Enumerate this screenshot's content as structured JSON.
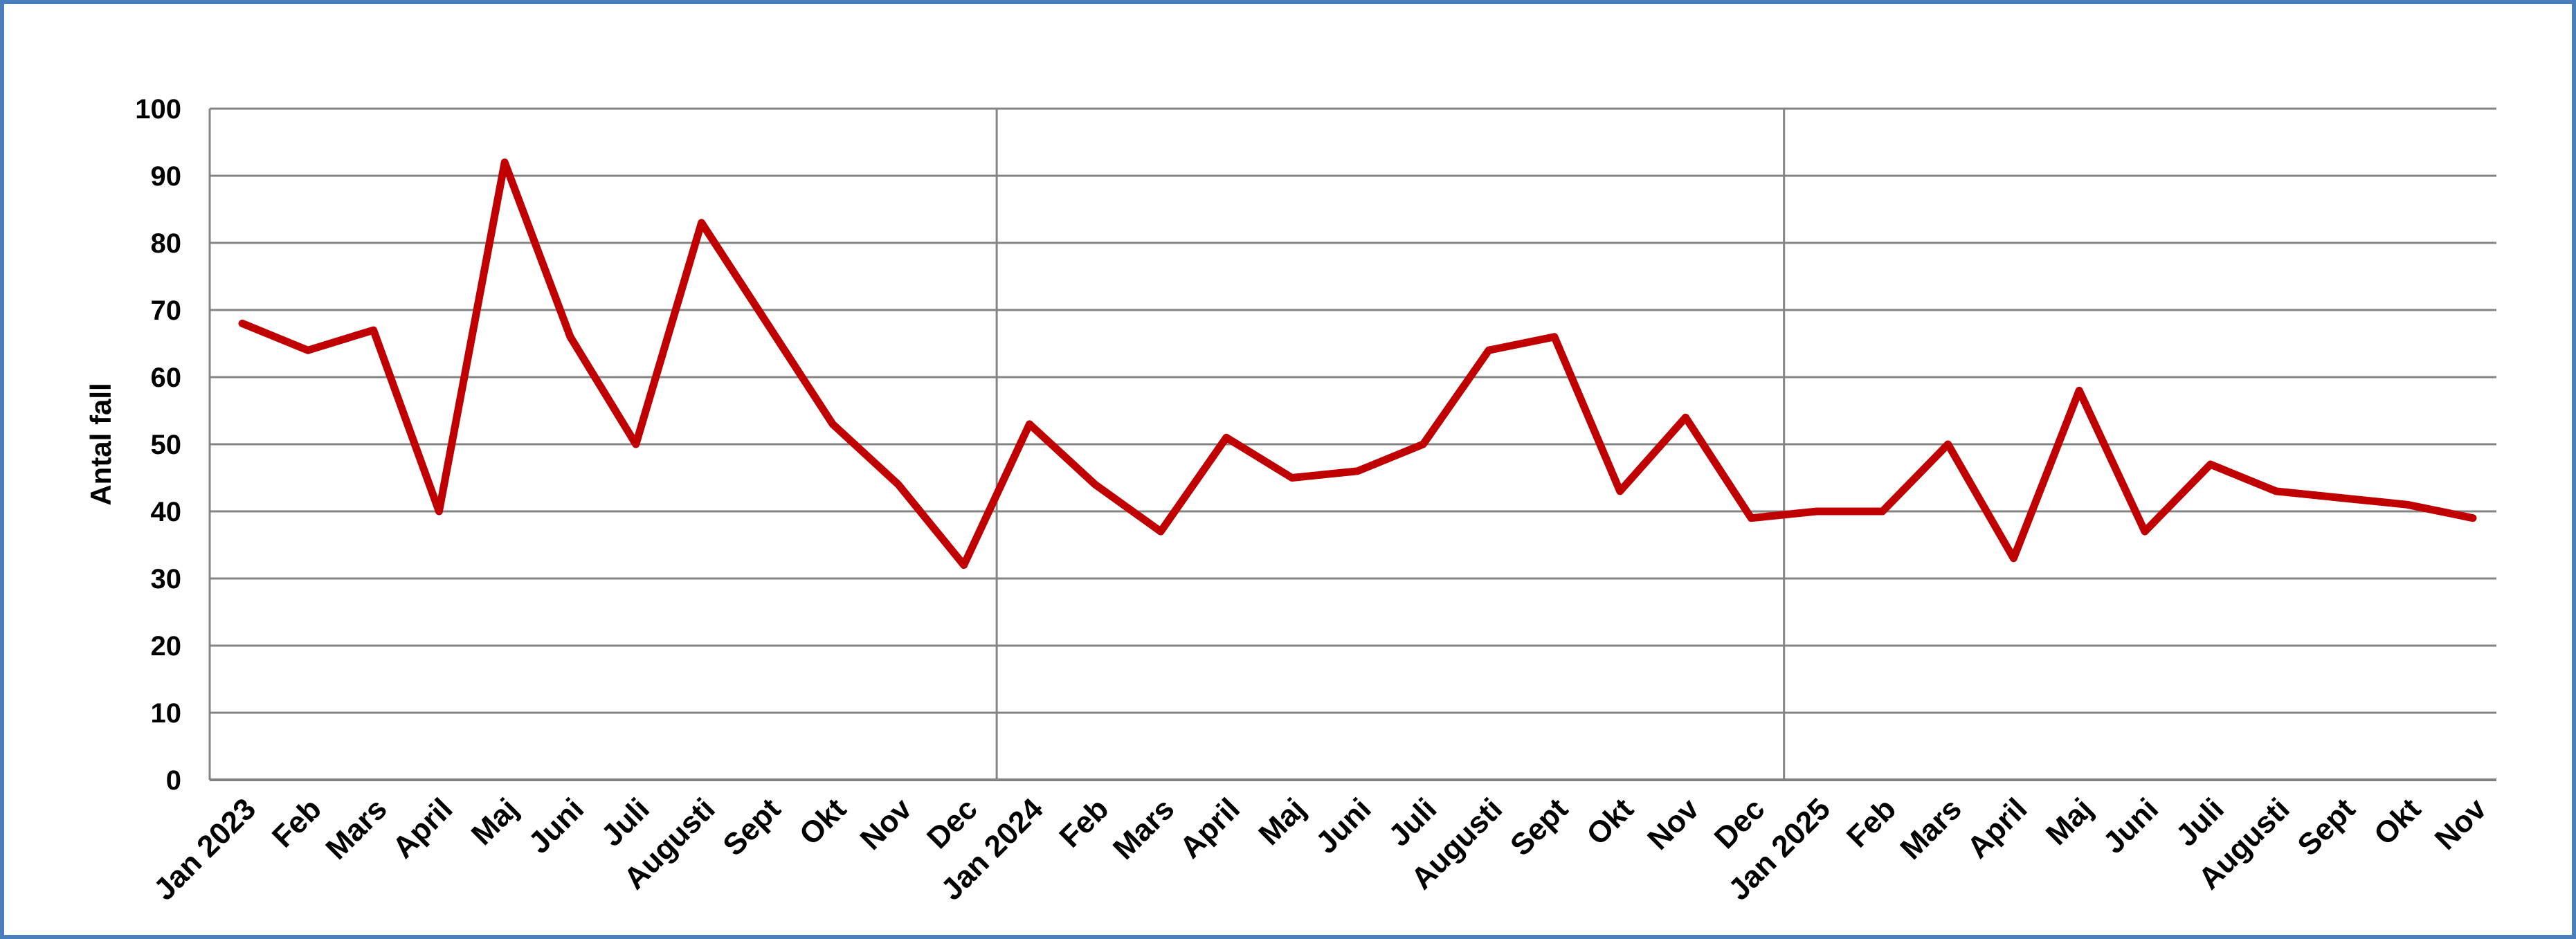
{
  "window": {
    "background_color": "#FFFFFF",
    "border_color": "#4A7EBC",
    "border_width": 6
  },
  "chart_data": {
    "type": "line",
    "title": "",
    "xlabel": "",
    "ylabel": "Antal fall",
    "ylim": [
      0,
      100
    ],
    "ytick_step": 10,
    "ytick_labels": [
      "0",
      "10",
      "20",
      "30",
      "40",
      "50",
      "60",
      "70",
      "80",
      "90",
      "100"
    ],
    "grid": "horizontal",
    "legend": "none",
    "line_color": "#C00000",
    "line_width": 11,
    "gridline_color": "#848484",
    "axis_line_color": "#808080",
    "categories": [
      "Jan 2023",
      "Feb",
      "Mars",
      "April",
      "Maj",
      "Juni",
      "Juli",
      "Augusti",
      "Sept",
      "Okt",
      "Nov",
      "Dec",
      "Jan 2024",
      "Feb",
      "Mars",
      "April",
      "Maj",
      "Juni",
      "Juli",
      "Augusti",
      "Sept",
      "Okt",
      "Nov",
      "Dec",
      "Jan 2025",
      "Feb",
      "Mars",
      "April",
      "Maj",
      "Juni",
      "Juli",
      "Augusti",
      "Sept",
      "Okt",
      "Nov"
    ],
    "series": [
      {
        "name": "Antal fall",
        "values": [
          68,
          64,
          67,
          40,
          92,
          66,
          50,
          83,
          68,
          53,
          44,
          32,
          53,
          44,
          37,
          51,
          45,
          46,
          50,
          64,
          66,
          43,
          54,
          39,
          40,
          40,
          50,
          33,
          58,
          37,
          47,
          43,
          42,
          41,
          39
        ]
      }
    ],
    "year_separator_after_indices": [
      11,
      23
    ],
    "x_label_rotation_deg": -45
  }
}
